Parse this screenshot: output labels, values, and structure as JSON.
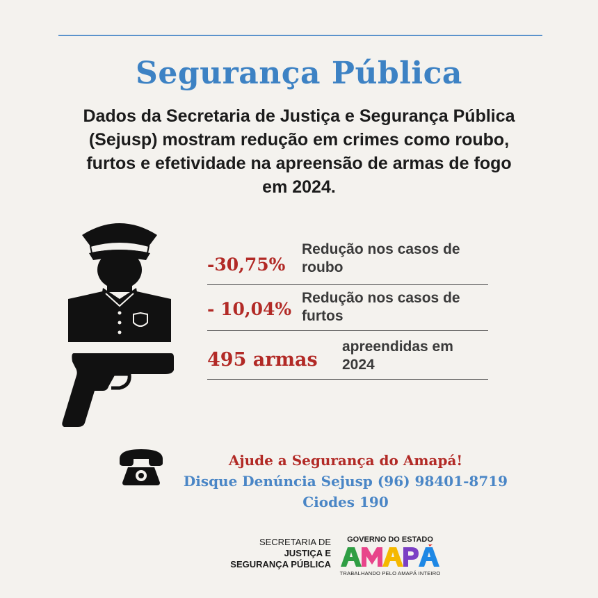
{
  "header": {
    "title": "Segurança Pública",
    "subtitle": "Dados da Secretaria de Justiça e Segurança Pública (Sejusp) mostram redução em crimes como roubo, furtos e efetividade na apreensão de armas de fogo em 2024."
  },
  "stats": [
    {
      "value": "-30,75%",
      "description": "Redução nos casos de roubo"
    },
    {
      "value": "- 10,04%",
      "description": "Redução nos casos de furtos"
    },
    {
      "value": "495 armas",
      "description": "apreendidas em 2024"
    }
  ],
  "cta": {
    "line1": "Ajude a Segurança do Amapá!",
    "line2": "Disque Denúncia Sejusp (96) 98401-8719",
    "line3": "Ciodes 190"
  },
  "footer": {
    "sejusp_line1": "SECRETARIA DE",
    "sejusp_line2": "JUSTIÇA E",
    "sejusp_line3": "SEGURANÇA PÚBLICA",
    "gov_top": "GOVERNO DO ESTADO",
    "gov_word": "AMAPÁ",
    "gov_tagline": "TRABALHANDO PELO AMAPÁ INTEIRO"
  },
  "icons": {
    "police": "police-officer-icon",
    "gun": "pistol-icon",
    "phone": "telephone-icon",
    "badge": "badge-icon"
  },
  "colors": {
    "background": "#f4f2ee",
    "title_blue": "#3d82c4",
    "accent_red": "#b22a26",
    "text_dark": "#1b1b1b"
  }
}
